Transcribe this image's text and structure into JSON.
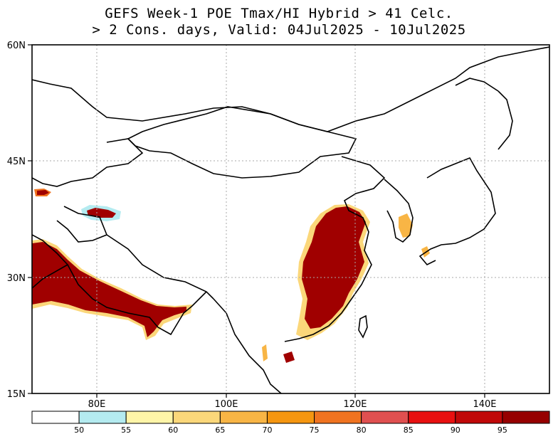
{
  "title": {
    "line1": "GEFS Week-1 POE Tmax/HI Hybrid > 41 Celc.",
    "line2": "> 2 Cons. days, Valid: 04Jul2025 - 10Jul2025"
  },
  "map": {
    "lat_ticks": [
      "60N",
      "45N",
      "30N",
      "15N"
    ],
    "lon_ticks": [
      "80E",
      "100E",
      "120E",
      "140E"
    ],
    "lat_range": [
      15,
      60
    ],
    "lon_range": [
      70,
      150
    ],
    "grid": "dotted"
  },
  "colorbar": {
    "labels": [
      "50",
      "55",
      "60",
      "65",
      "70",
      "75",
      "80",
      "85",
      "90",
      "95"
    ],
    "colors": [
      "#ffffff",
      "#b4ebf0",
      "#fff5a8",
      "#fbd77a",
      "#f8b545",
      "#f59610",
      "#f07320",
      "#e05050",
      "#e81010",
      "#c00808",
      "#960000"
    ]
  }
}
